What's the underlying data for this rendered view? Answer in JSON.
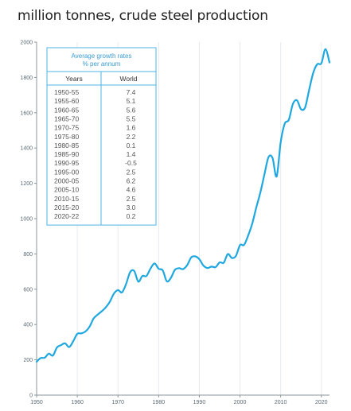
{
  "title": "million tonnes, crude steel production",
  "colors": {
    "line": "#1fa8e0",
    "grid": "#e6e9ec",
    "axis": "#8a969d",
    "table_border": "#4db3e6",
    "table_title": "#3a9bd5"
  },
  "chart_data": {
    "type": "line",
    "title": "million tonnes, crude steel production",
    "xlabel": "",
    "ylabel": "",
    "xlim": [
      1950,
      2022
    ],
    "ylim": [
      0,
      2000
    ],
    "x_ticks": [
      1950,
      1960,
      1970,
      1980,
      1990,
      2000,
      2010,
      2020
    ],
    "y_ticks": [
      0,
      200,
      400,
      600,
      800,
      1000,
      1200,
      1400,
      1600,
      1800,
      2000
    ],
    "grid": "vertical",
    "series": [
      {
        "x": [
          1950,
          1951,
          1952,
          1953,
          1954,
          1955,
          1956,
          1957,
          1958,
          1959,
          1960,
          1961,
          1962,
          1963,
          1964,
          1965,
          1966,
          1967,
          1968,
          1969,
          1970,
          1971,
          1972,
          1973,
          1974,
          1975,
          1976,
          1977,
          1978,
          1979,
          1980,
          1981,
          1982,
          1983,
          1984,
          1985,
          1986,
          1987,
          1988,
          1989,
          1990,
          1991,
          1992,
          1993,
          1994,
          1995,
          1996,
          1997,
          1998,
          1999,
          2000,
          2001,
          2002,
          2003,
          2004,
          2005,
          2006,
          2007,
          2008,
          2009,
          2010,
          2011,
          2012,
          2013,
          2014,
          2015,
          2016,
          2017,
          2018,
          2019,
          2020,
          2021,
          2022
        ],
        "values": [
          189,
          210,
          212,
          235,
          224,
          270,
          283,
          293,
          272,
          305,
          347,
          350,
          360,
          387,
          434,
          456,
          475,
          497,
          529,
          575,
          595,
          582,
          630,
          697,
          703,
          643,
          675,
          675,
          717,
          746,
          716,
          707,
          645,
          664,
          710,
          719,
          714,
          736,
          780,
          786,
          770,
          734,
          720,
          728,
          725,
          752,
          750,
          799,
          777,
          789,
          850,
          851,
          904,
          971,
          1063,
          1148,
          1250,
          1348,
          1343,
          1239,
          1433,
          1538,
          1560,
          1650,
          1670,
          1620,
          1630,
          1730,
          1826,
          1875,
          1880,
          1960,
          1885
        ]
      }
    ]
  },
  "growth_table": {
    "title_line1": "Average growth rates",
    "title_line2": "% per annum",
    "headers": [
      "Years",
      "World"
    ],
    "rows": [
      [
        "1950-55",
        "7.4"
      ],
      [
        "1955-60",
        "5.1"
      ],
      [
        "1960-65",
        "5.6"
      ],
      [
        "1965-70",
        "5.5"
      ],
      [
        "1970-75",
        "1.6"
      ],
      [
        "1975-80",
        "2.2"
      ],
      [
        "1980-85",
        "0.1"
      ],
      [
        "1985-90",
        "1.4"
      ],
      [
        "1990-95",
        "-0.5"
      ],
      [
        "1995-00",
        "2.5"
      ],
      [
        "2000-05",
        "6.2"
      ],
      [
        "2005-10",
        "4.6"
      ],
      [
        "2010-15",
        "2.5"
      ],
      [
        "2015-20",
        "3.0"
      ],
      [
        "2020-22",
        "0.2"
      ]
    ]
  }
}
